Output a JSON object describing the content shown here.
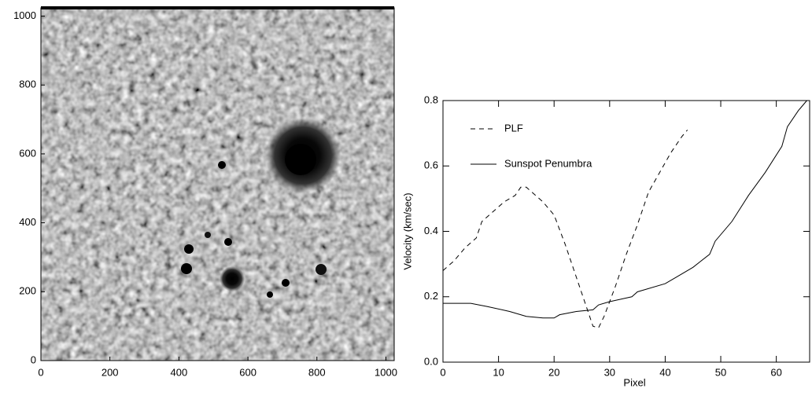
{
  "chart_data": [
    {
      "type": "image",
      "xlim": [
        0,
        1024
      ],
      "ylim": [
        0,
        1024
      ],
      "xticks": [
        0,
        200,
        400,
        600,
        800,
        1000
      ],
      "yticks": [
        0,
        200,
        400,
        600,
        800,
        1000
      ]
    },
    {
      "type": "line",
      "xlabel": "Pixel",
      "ylabel": "Velocity (km/sec)",
      "xlim": [
        0,
        66
      ],
      "ylim": [
        0,
        0.8
      ],
      "xticks": [
        0,
        10,
        20,
        30,
        40,
        50,
        60
      ],
      "yticks": [
        {
          "value": 0,
          "label": "0.0"
        },
        0.2,
        0.4,
        0.6,
        0.8
      ],
      "series": [
        {
          "name": "PLF",
          "color": "#000000",
          "dash": true,
          "x": [
            0,
            2,
            4,
            6,
            7,
            9,
            11,
            13,
            14,
            15,
            16,
            18,
            20,
            22,
            24,
            26,
            27,
            28,
            29,
            31,
            33,
            35,
            37,
            39,
            41,
            43,
            44
          ],
          "values": [
            0.28,
            0.31,
            0.35,
            0.38,
            0.43,
            0.46,
            0.49,
            0.51,
            0.535,
            0.535,
            0.52,
            0.49,
            0.45,
            0.36,
            0.26,
            0.16,
            0.11,
            0.105,
            0.14,
            0.23,
            0.33,
            0.42,
            0.52,
            0.58,
            0.64,
            0.69,
            0.71
          ]
        },
        {
          "name": "Sunspot Penumbra",
          "color": "#000000",
          "dash": false,
          "x": [
            0,
            2,
            5,
            8,
            12,
            15,
            18,
            20,
            21,
            24,
            27,
            28,
            30,
            34,
            35,
            40,
            42,
            45,
            48,
            49,
            52,
            55,
            58,
            61,
            62,
            64,
            65.5
          ],
          "values": [
            0.18,
            0.18,
            0.18,
            0.17,
            0.155,
            0.14,
            0.135,
            0.135,
            0.145,
            0.155,
            0.16,
            0.175,
            0.185,
            0.2,
            0.215,
            0.24,
            0.26,
            0.29,
            0.33,
            0.37,
            0.43,
            0.51,
            0.58,
            0.66,
            0.72,
            0.77,
            0.8
          ]
        }
      ]
    }
  ]
}
